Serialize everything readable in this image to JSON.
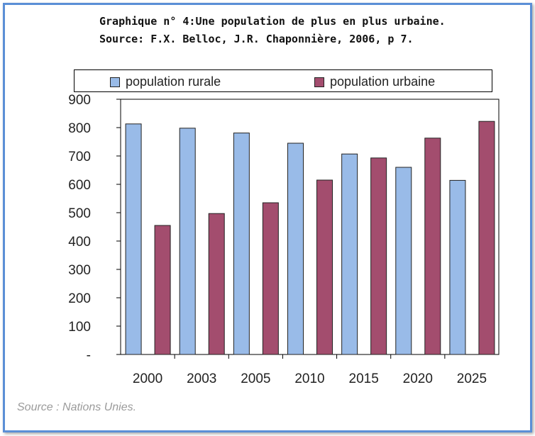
{
  "title_lines": [
    "Graphique n° 4:Une population de plus en plus urbaine.",
    "Source: F.X. Belloc, J.R. Chaponnière, 2006, p 7."
  ],
  "source_note": "Source  : Nations Unies.",
  "colors": {
    "rural": "#99bbe8",
    "urbaine": "#a34d6e",
    "frame": "#5b8fd6"
  },
  "chart_data": {
    "type": "bar",
    "categories": [
      "2000",
      "2003",
      "2005",
      "2010",
      "2015",
      "2020",
      "2025"
    ],
    "series": [
      {
        "name": "population rurale",
        "values": [
          813,
          798,
          781,
          745,
          707,
          660,
          614
        ]
      },
      {
        "name": "population urbaine",
        "values": [
          455,
          497,
          535,
          615,
          693,
          763,
          822
        ]
      }
    ],
    "ylim": [
      0,
      900
    ],
    "yticks": [
      0,
      100,
      200,
      300,
      400,
      500,
      600,
      700,
      800,
      900
    ],
    "ytick_labels": [
      "-",
      "100",
      "200",
      "300",
      "400",
      "500",
      "600",
      "700",
      "800",
      "900"
    ],
    "legend": "top",
    "grid": false
  }
}
